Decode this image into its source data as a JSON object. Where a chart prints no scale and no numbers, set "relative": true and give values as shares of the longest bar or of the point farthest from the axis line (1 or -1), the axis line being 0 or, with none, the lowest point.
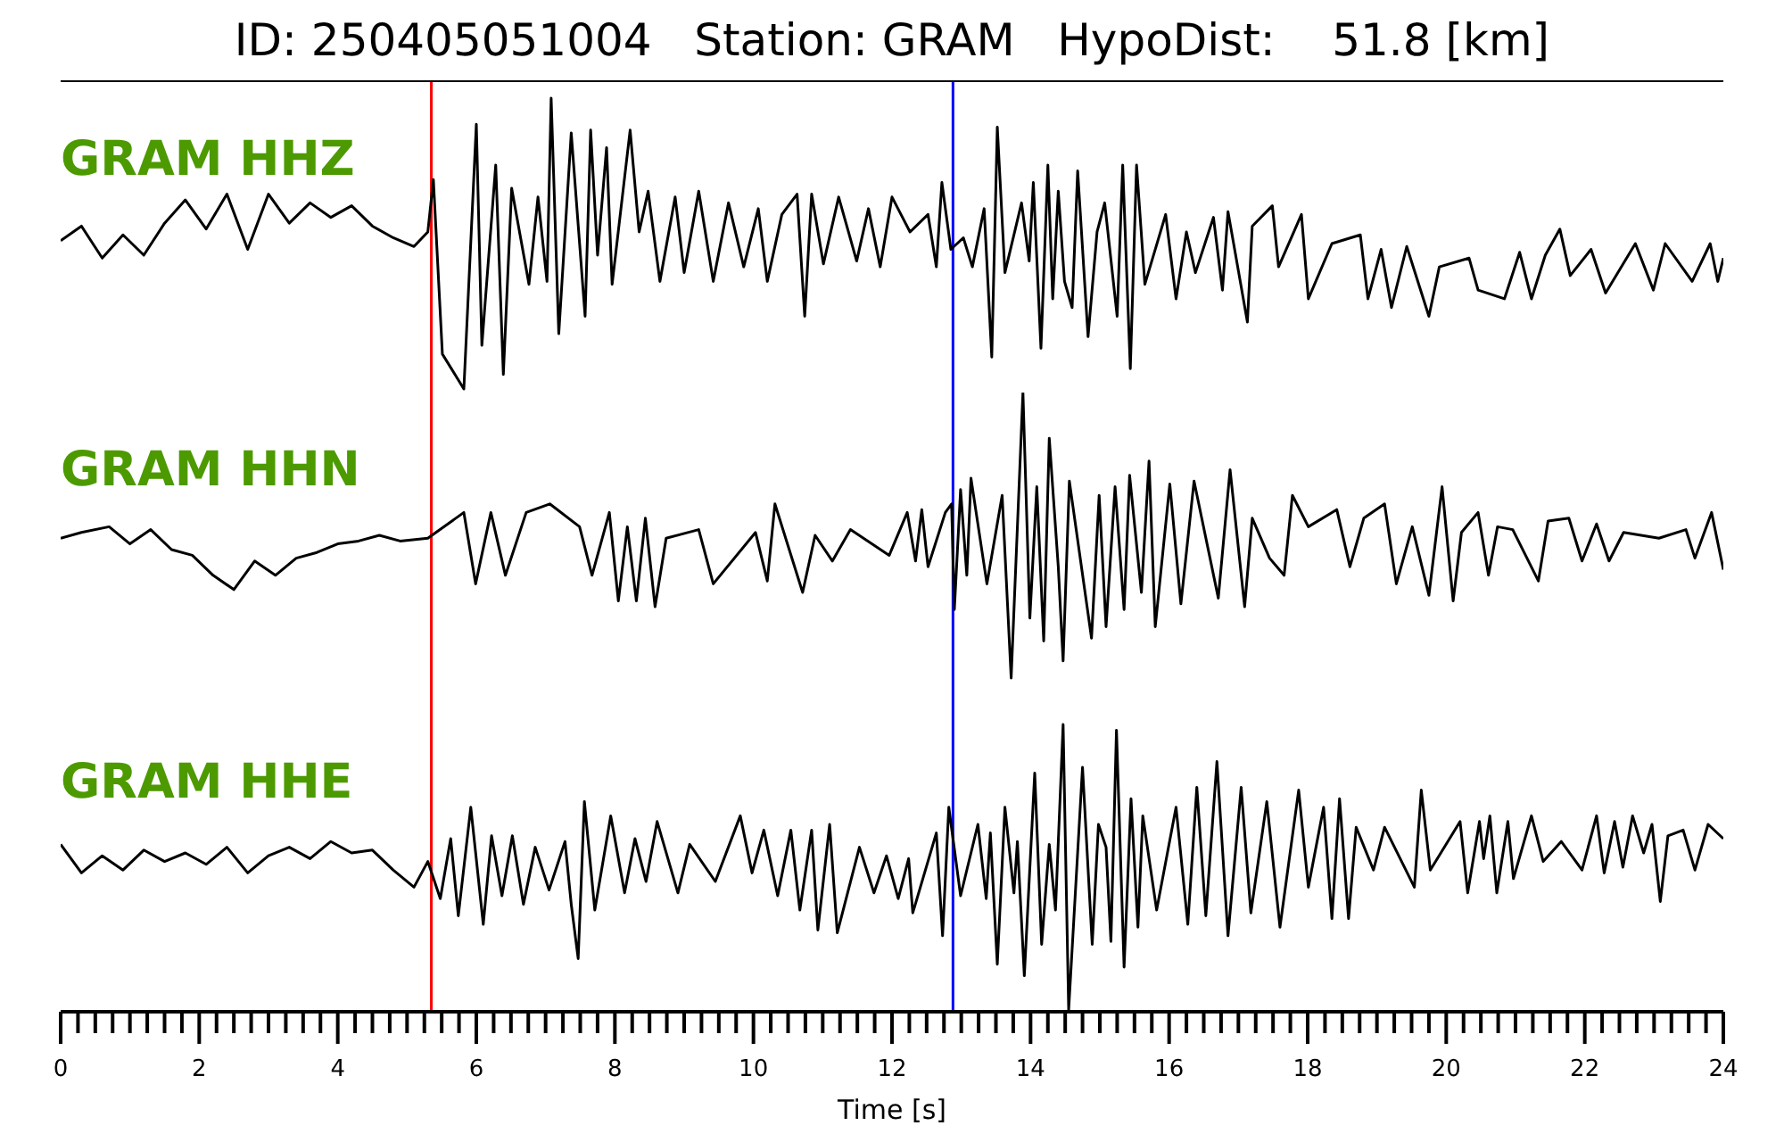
{
  "chart_data": [
    {
      "type": "line",
      "title": "ID: 250405051004   Station: GRAM   HypoDist:    51.8 [km]",
      "relative": true,
      "xlim": [
        0,
        24
      ],
      "tick_labels": false,
      "ref_lines": [
        {
          "axis": "x",
          "value": 5.35,
          "color": "#ff0000"
        },
        {
          "axis": "x",
          "value": 12.88,
          "color": "#0000ff"
        }
      ],
      "series": [
        {
          "name": "GRAM HHZ",
          "color": "#000000",
          "x": [
            0,
            0.3,
            0.6,
            0.9,
            1.2,
            1.5,
            1.8,
            2.1,
            2.4,
            2.7,
            3.0,
            3.3,
            3.6,
            3.9,
            4.2,
            4.5,
            4.8,
            5.1,
            5.3,
            5.38,
            5.51,
            5.82,
            6.0,
            6.08,
            6.28,
            6.39,
            6.51,
            6.76,
            6.89,
            7.02,
            7.08,
            7.19,
            7.37,
            7.57,
            7.65,
            7.75,
            7.88,
            7.96,
            8.22,
            8.35,
            8.48,
            8.65,
            8.87,
            9.0,
            9.21,
            9.42,
            9.64,
            9.86,
            10.07,
            10.2,
            10.41,
            10.63,
            10.74,
            10.84,
            11.01,
            11.23,
            11.49,
            11.66,
            11.83,
            12.0,
            12.26,
            12.52,
            12.64,
            12.72,
            12.85,
            13.03,
            13.16,
            13.33,
            13.44,
            13.52,
            13.63,
            13.87,
            13.98,
            14.04,
            14.15,
            14.25,
            14.32,
            14.4,
            14.49,
            14.6,
            14.68,
            14.83,
            14.96,
            15.07,
            15.25,
            15.33,
            15.44,
            15.53,
            15.65,
            15.95,
            16.1,
            16.25,
            16.38,
            16.64,
            16.77,
            16.85,
            17.13,
            17.2,
            17.49,
            17.58,
            17.91,
            18.01,
            18.35,
            18.76,
            18.87,
            19.06,
            19.21,
            19.43,
            19.75,
            19.9,
            20.33,
            20.46,
            20.84,
            21.06,
            21.23,
            21.43,
            21.64,
            21.79,
            22.09,
            22.3,
            22.73,
            22.99,
            23.16,
            23.55,
            23.81,
            23.92,
            24.0
          ],
          "values": [
            0.51,
            0.56,
            0.45,
            0.53,
            0.46,
            0.57,
            0.65,
            0.55,
            0.67,
            0.48,
            0.67,
            0.57,
            0.64,
            0.59,
            0.63,
            0.56,
            0.52,
            0.49,
            0.54,
            0.72,
            0.12,
            0,
            0.91,
            0.15,
            0.77,
            0.05,
            0.69,
            0.36,
            0.66,
            0.37,
            1,
            0.19,
            0.88,
            0.25,
            0.89,
            0.46,
            0.83,
            0.36,
            0.89,
            0.54,
            0.68,
            0.37,
            0.66,
            0.4,
            0.68,
            0.37,
            0.64,
            0.42,
            0.62,
            0.37,
            0.6,
            0.67,
            0.25,
            0.67,
            0.43,
            0.66,
            0.44,
            0.62,
            0.42,
            0.66,
            0.54,
            0.6,
            0.42,
            0.71,
            0.48,
            0.52,
            0.42,
            0.62,
            0.11,
            0.9,
            0.4,
            0.64,
            0.44,
            0.71,
            0.14,
            0.77,
            0.31,
            0.68,
            0.37,
            0.28,
            0.75,
            0.18,
            0.54,
            0.64,
            0.25,
            0.77,
            0.07,
            0.77,
            0.36,
            0.6,
            0.31,
            0.54,
            0.4,
            0.59,
            0.34,
            0.61,
            0.23,
            0.56,
            0.63,
            0.42,
            0.6,
            0.31,
            0.5,
            0.53,
            0.31,
            0.48,
            0.28,
            0.49,
            0.25,
            0.42,
            0.45,
            0.34,
            0.31,
            0.47,
            0.31,
            0.46,
            0.55,
            0.39,
            0.48,
            0.33,
            0.5,
            0.34,
            0.5,
            0.37,
            0.5,
            0.37,
            0.45
          ]
        }
      ]
    },
    {
      "type": "line",
      "relative": true,
      "xlim": [
        0,
        24
      ],
      "tick_labels": false,
      "ref_lines": [
        {
          "axis": "x",
          "value": 5.35,
          "color": "#ff0000"
        },
        {
          "axis": "x",
          "value": 12.88,
          "color": "#0000ff"
        }
      ],
      "series": [
        {
          "name": "GRAM HHN",
          "color": "#000000",
          "x": [
            0,
            0.3,
            0.7,
            1.0,
            1.3,
            1.6,
            1.9,
            2.2,
            2.5,
            2.8,
            3.1,
            3.4,
            3.7,
            4.0,
            4.3,
            4.6,
            4.9,
            5.3,
            5.82,
            5.99,
            6.21,
            6.42,
            6.72,
            7.06,
            7.49,
            7.67,
            7.92,
            8.05,
            8.18,
            8.31,
            8.44,
            8.58,
            8.74,
            9.21,
            9.42,
            10.03,
            10.2,
            10.31,
            10.71,
            10.89,
            11.14,
            11.4,
            11.96,
            12.22,
            12.34,
            12.43,
            12.52,
            12.77,
            12.86,
            12.9,
            12.99,
            13.08,
            13.14,
            13.37,
            13.59,
            13.72,
            13.89,
            13.99,
            14.09,
            14.19,
            14.27,
            14.4,
            14.47,
            14.56,
            14.88,
            14.99,
            15.09,
            15.22,
            15.35,
            15.43,
            15.6,
            15.71,
            15.8,
            16.01,
            16.17,
            16.36,
            16.71,
            16.88,
            17.09,
            17.2,
            17.45,
            17.66,
            17.78,
            18.01,
            18.42,
            18.61,
            18.81,
            19.11,
            19.28,
            19.51,
            19.75,
            19.94,
            20.1,
            20.22,
            20.46,
            20.61,
            20.74,
            20.96,
            21.33,
            21.47,
            21.77,
            21.96,
            22.17,
            22.35,
            22.56,
            23.07,
            23.46,
            23.59,
            23.83,
            24.0
          ],
          "values": [
            0.49,
            0.51,
            0.53,
            0.47,
            0.52,
            0.45,
            0.43,
            0.36,
            0.31,
            0.41,
            0.36,
            0.42,
            0.44,
            0.47,
            0.48,
            0.5,
            0.48,
            0.49,
            0.58,
            0.33,
            0.58,
            0.36,
            0.58,
            0.61,
            0.53,
            0.36,
            0.58,
            0.27,
            0.53,
            0.27,
            0.56,
            0.25,
            0.49,
            0.52,
            0.33,
            0.51,
            0.34,
            0.61,
            0.3,
            0.5,
            0.41,
            0.52,
            0.43,
            0.58,
            0.41,
            0.59,
            0.39,
            0.58,
            0.61,
            0.24,
            0.66,
            0.36,
            0.7,
            0.33,
            0.64,
            0,
            1,
            0.21,
            0.67,
            0.13,
            0.84,
            0.39,
            0.06,
            0.69,
            0.14,
            0.64,
            0.18,
            0.67,
            0.24,
            0.71,
            0.3,
            0.76,
            0.18,
            0.68,
            0.26,
            0.69,
            0.28,
            0.73,
            0.25,
            0.56,
            0.42,
            0.36,
            0.64,
            0.53,
            0.59,
            0.39,
            0.56,
            0.61,
            0.33,
            0.53,
            0.29,
            0.67,
            0.27,
            0.51,
            0.58,
            0.36,
            0.53,
            0.52,
            0.34,
            0.55,
            0.56,
            0.41,
            0.54,
            0.41,
            0.51,
            0.49,
            0.52,
            0.42,
            0.58,
            0.38
          ]
        }
      ]
    },
    {
      "type": "line",
      "xlabel": "Time [s]",
      "relative": true,
      "xlim": [
        0,
        24
      ],
      "tick_labels": "x",
      "xticks": [
        0,
        {
          "value": 0.25,
          "label": null
        },
        {
          "value": 0.5,
          "label": null
        },
        {
          "value": 0.75,
          "label": null
        },
        {
          "value": 1,
          "label": null
        },
        {
          "value": 1.25,
          "label": null
        },
        {
          "value": 1.5,
          "label": null
        },
        {
          "value": 1.75,
          "label": null
        },
        2,
        {
          "value": 2.25,
          "label": null
        },
        {
          "value": 2.5,
          "label": null
        },
        {
          "value": 2.75,
          "label": null
        },
        {
          "value": 3,
          "label": null
        },
        {
          "value": 3.25,
          "label": null
        },
        {
          "value": 3.5,
          "label": null
        },
        {
          "value": 3.75,
          "label": null
        },
        4,
        {
          "value": 4.25,
          "label": null
        },
        {
          "value": 4.5,
          "label": null
        },
        {
          "value": 4.75,
          "label": null
        },
        {
          "value": 5,
          "label": null
        },
        {
          "value": 5.25,
          "label": null
        },
        {
          "value": 5.5,
          "label": null
        },
        {
          "value": 5.75,
          "label": null
        },
        6,
        {
          "value": 6.25,
          "label": null
        },
        {
          "value": 6.5,
          "label": null
        },
        {
          "value": 6.75,
          "label": null
        },
        {
          "value": 7,
          "label": null
        },
        {
          "value": 7.25,
          "label": null
        },
        {
          "value": 7.5,
          "label": null
        },
        {
          "value": 7.75,
          "label": null
        },
        8,
        {
          "value": 8.25,
          "label": null
        },
        {
          "value": 8.5,
          "label": null
        },
        {
          "value": 8.75,
          "label": null
        },
        {
          "value": 9,
          "label": null
        },
        {
          "value": 9.25,
          "label": null
        },
        {
          "value": 9.5,
          "label": null
        },
        {
          "value": 9.75,
          "label": null
        },
        10,
        {
          "value": 10.25,
          "label": null
        },
        {
          "value": 10.5,
          "label": null
        },
        {
          "value": 10.75,
          "label": null
        },
        {
          "value": 11,
          "label": null
        },
        {
          "value": 11.25,
          "label": null
        },
        {
          "value": 11.5,
          "label": null
        },
        {
          "value": 11.75,
          "label": null
        },
        12,
        {
          "value": 12.25,
          "label": null
        },
        {
          "value": 12.5,
          "label": null
        },
        {
          "value": 12.75,
          "label": null
        },
        {
          "value": 13,
          "label": null
        },
        {
          "value": 13.25,
          "label": null
        },
        {
          "value": 13.5,
          "label": null
        },
        {
          "value": 13.75,
          "label": null
        },
        14,
        {
          "value": 14.25,
          "label": null
        },
        {
          "value": 14.5,
          "label": null
        },
        {
          "value": 14.75,
          "label": null
        },
        {
          "value": 15,
          "label": null
        },
        {
          "value": 15.25,
          "label": null
        },
        {
          "value": 15.5,
          "label": null
        },
        {
          "value": 15.75,
          "label": null
        },
        16,
        {
          "value": 16.25,
          "label": null
        },
        {
          "value": 16.5,
          "label": null
        },
        {
          "value": 16.75,
          "label": null
        },
        {
          "value": 17,
          "label": null
        },
        {
          "value": 17.25,
          "label": null
        },
        {
          "value": 17.5,
          "label": null
        },
        {
          "value": 17.75,
          "label": null
        },
        18,
        {
          "value": 18.25,
          "label": null
        },
        {
          "value": 18.5,
          "label": null
        },
        {
          "value": 18.75,
          "label": null
        },
        {
          "value": 19,
          "label": null
        },
        {
          "value": 19.25,
          "label": null
        },
        {
          "value": 19.5,
          "label": null
        },
        {
          "value": 19.75,
          "label": null
        },
        20,
        {
          "value": 20.25,
          "label": null
        },
        {
          "value": 20.5,
          "label": null
        },
        {
          "value": 20.75,
          "label": null
        },
        {
          "value": 21,
          "label": null
        },
        {
          "value": 21.25,
          "label": null
        },
        {
          "value": 21.5,
          "label": null
        },
        {
          "value": 21.75,
          "label": null
        },
        22,
        {
          "value": 22.25,
          "label": null
        },
        {
          "value": 22.5,
          "label": null
        },
        {
          "value": 22.75,
          "label": null
        },
        {
          "value": 23,
          "label": null
        },
        {
          "value": 23.25,
          "label": null
        },
        {
          "value": 23.5,
          "label": null
        },
        {
          "value": 23.75,
          "label": null
        },
        24
      ],
      "ref_lines": [
        {
          "axis": "x",
          "value": 5.35,
          "color": "#ff0000"
        },
        {
          "axis": "x",
          "value": 12.88,
          "color": "#0000ff"
        }
      ],
      "series": [
        {
          "name": "GRAM HHE",
          "color": "#000000",
          "x": [
            0,
            0.3,
            0.6,
            0.9,
            1.2,
            1.5,
            1.8,
            2.1,
            2.4,
            2.7,
            3.0,
            3.3,
            3.6,
            3.9,
            4.2,
            4.5,
            4.8,
            5.1,
            5.3,
            5.48,
            5.63,
            5.74,
            5.92,
            6.1,
            6.22,
            6.37,
            6.52,
            6.68,
            6.85,
            7.05,
            7.28,
            7.37,
            7.47,
            7.56,
            7.71,
            7.94,
            8.14,
            8.29,
            8.45,
            8.61,
            8.91,
            9.08,
            9.45,
            9.81,
            9.98,
            10.15,
            10.35,
            10.54,
            10.67,
            10.84,
            10.93,
            11.1,
            11.21,
            11.53,
            11.74,
            11.92,
            12.09,
            12.24,
            12.3,
            12.64,
            12.73,
            12.82,
            12.99,
            13.24,
            13.36,
            13.42,
            13.52,
            13.63,
            13.76,
            13.81,
            13.91,
            14.06,
            14.16,
            14.27,
            14.36,
            14.47,
            14.55,
            14.75,
            14.89,
            14.98,
            15.09,
            15.16,
            15.24,
            15.35,
            15.45,
            15.55,
            15.62,
            15.82,
            16.1,
            16.27,
            16.4,
            16.53,
            16.69,
            16.85,
            17.04,
            17.18,
            17.41,
            17.6,
            17.87,
            18.01,
            18.23,
            18.35,
            18.46,
            18.59,
            18.7,
            18.95,
            19.11,
            19.54,
            19.64,
            19.77,
            20.2,
            20.31,
            20.48,
            20.54,
            20.63,
            20.73,
            20.89,
            20.97,
            21.23,
            21.4,
            21.66,
            21.96,
            22.17,
            22.28,
            22.43,
            22.55,
            22.69,
            22.85,
            22.97,
            23.09,
            23.2,
            23.42,
            23.59,
            23.78,
            24.0
          ],
          "values": [
            0.58,
            0.48,
            0.54,
            0.49,
            0.56,
            0.52,
            0.55,
            0.51,
            0.57,
            0.48,
            0.54,
            0.57,
            0.53,
            0.59,
            0.55,
            0.56,
            0.49,
            0.43,
            0.52,
            0.39,
            0.6,
            0.33,
            0.71,
            0.3,
            0.61,
            0.4,
            0.61,
            0.37,
            0.57,
            0.42,
            0.59,
            0.37,
            0.18,
            0.73,
            0.35,
            0.68,
            0.41,
            0.6,
            0.45,
            0.66,
            0.41,
            0.58,
            0.45,
            0.68,
            0.48,
            0.63,
            0.4,
            0.63,
            0.35,
            0.63,
            0.28,
            0.65,
            0.27,
            0.57,
            0.41,
            0.54,
            0.39,
            0.53,
            0.34,
            0.62,
            0.26,
            0.71,
            0.4,
            0.65,
            0.39,
            0.62,
            0.16,
            0.71,
            0.41,
            0.59,
            0.12,
            0.83,
            0.23,
            0.58,
            0.35,
            1,
            0,
            0.85,
            0.23,
            0.65,
            0.57,
            0.24,
            0.98,
            0.15,
            0.74,
            0.29,
            0.68,
            0.35,
            0.71,
            0.3,
            0.78,
            0.33,
            0.87,
            0.26,
            0.78,
            0.34,
            0.73,
            0.29,
            0.77,
            0.43,
            0.71,
            0.32,
            0.74,
            0.32,
            0.64,
            0.49,
            0.64,
            0.43,
            0.77,
            0.49,
            0.66,
            0.41,
            0.66,
            0.53,
            0.68,
            0.41,
            0.66,
            0.46,
            0.68,
            0.52,
            0.59,
            0.49,
            0.68,
            0.48,
            0.66,
            0.5,
            0.68,
            0.55,
            0.65,
            0.38,
            0.61,
            0.63,
            0.49,
            0.65,
            0.6
          ]
        }
      ]
    }
  ]
}
